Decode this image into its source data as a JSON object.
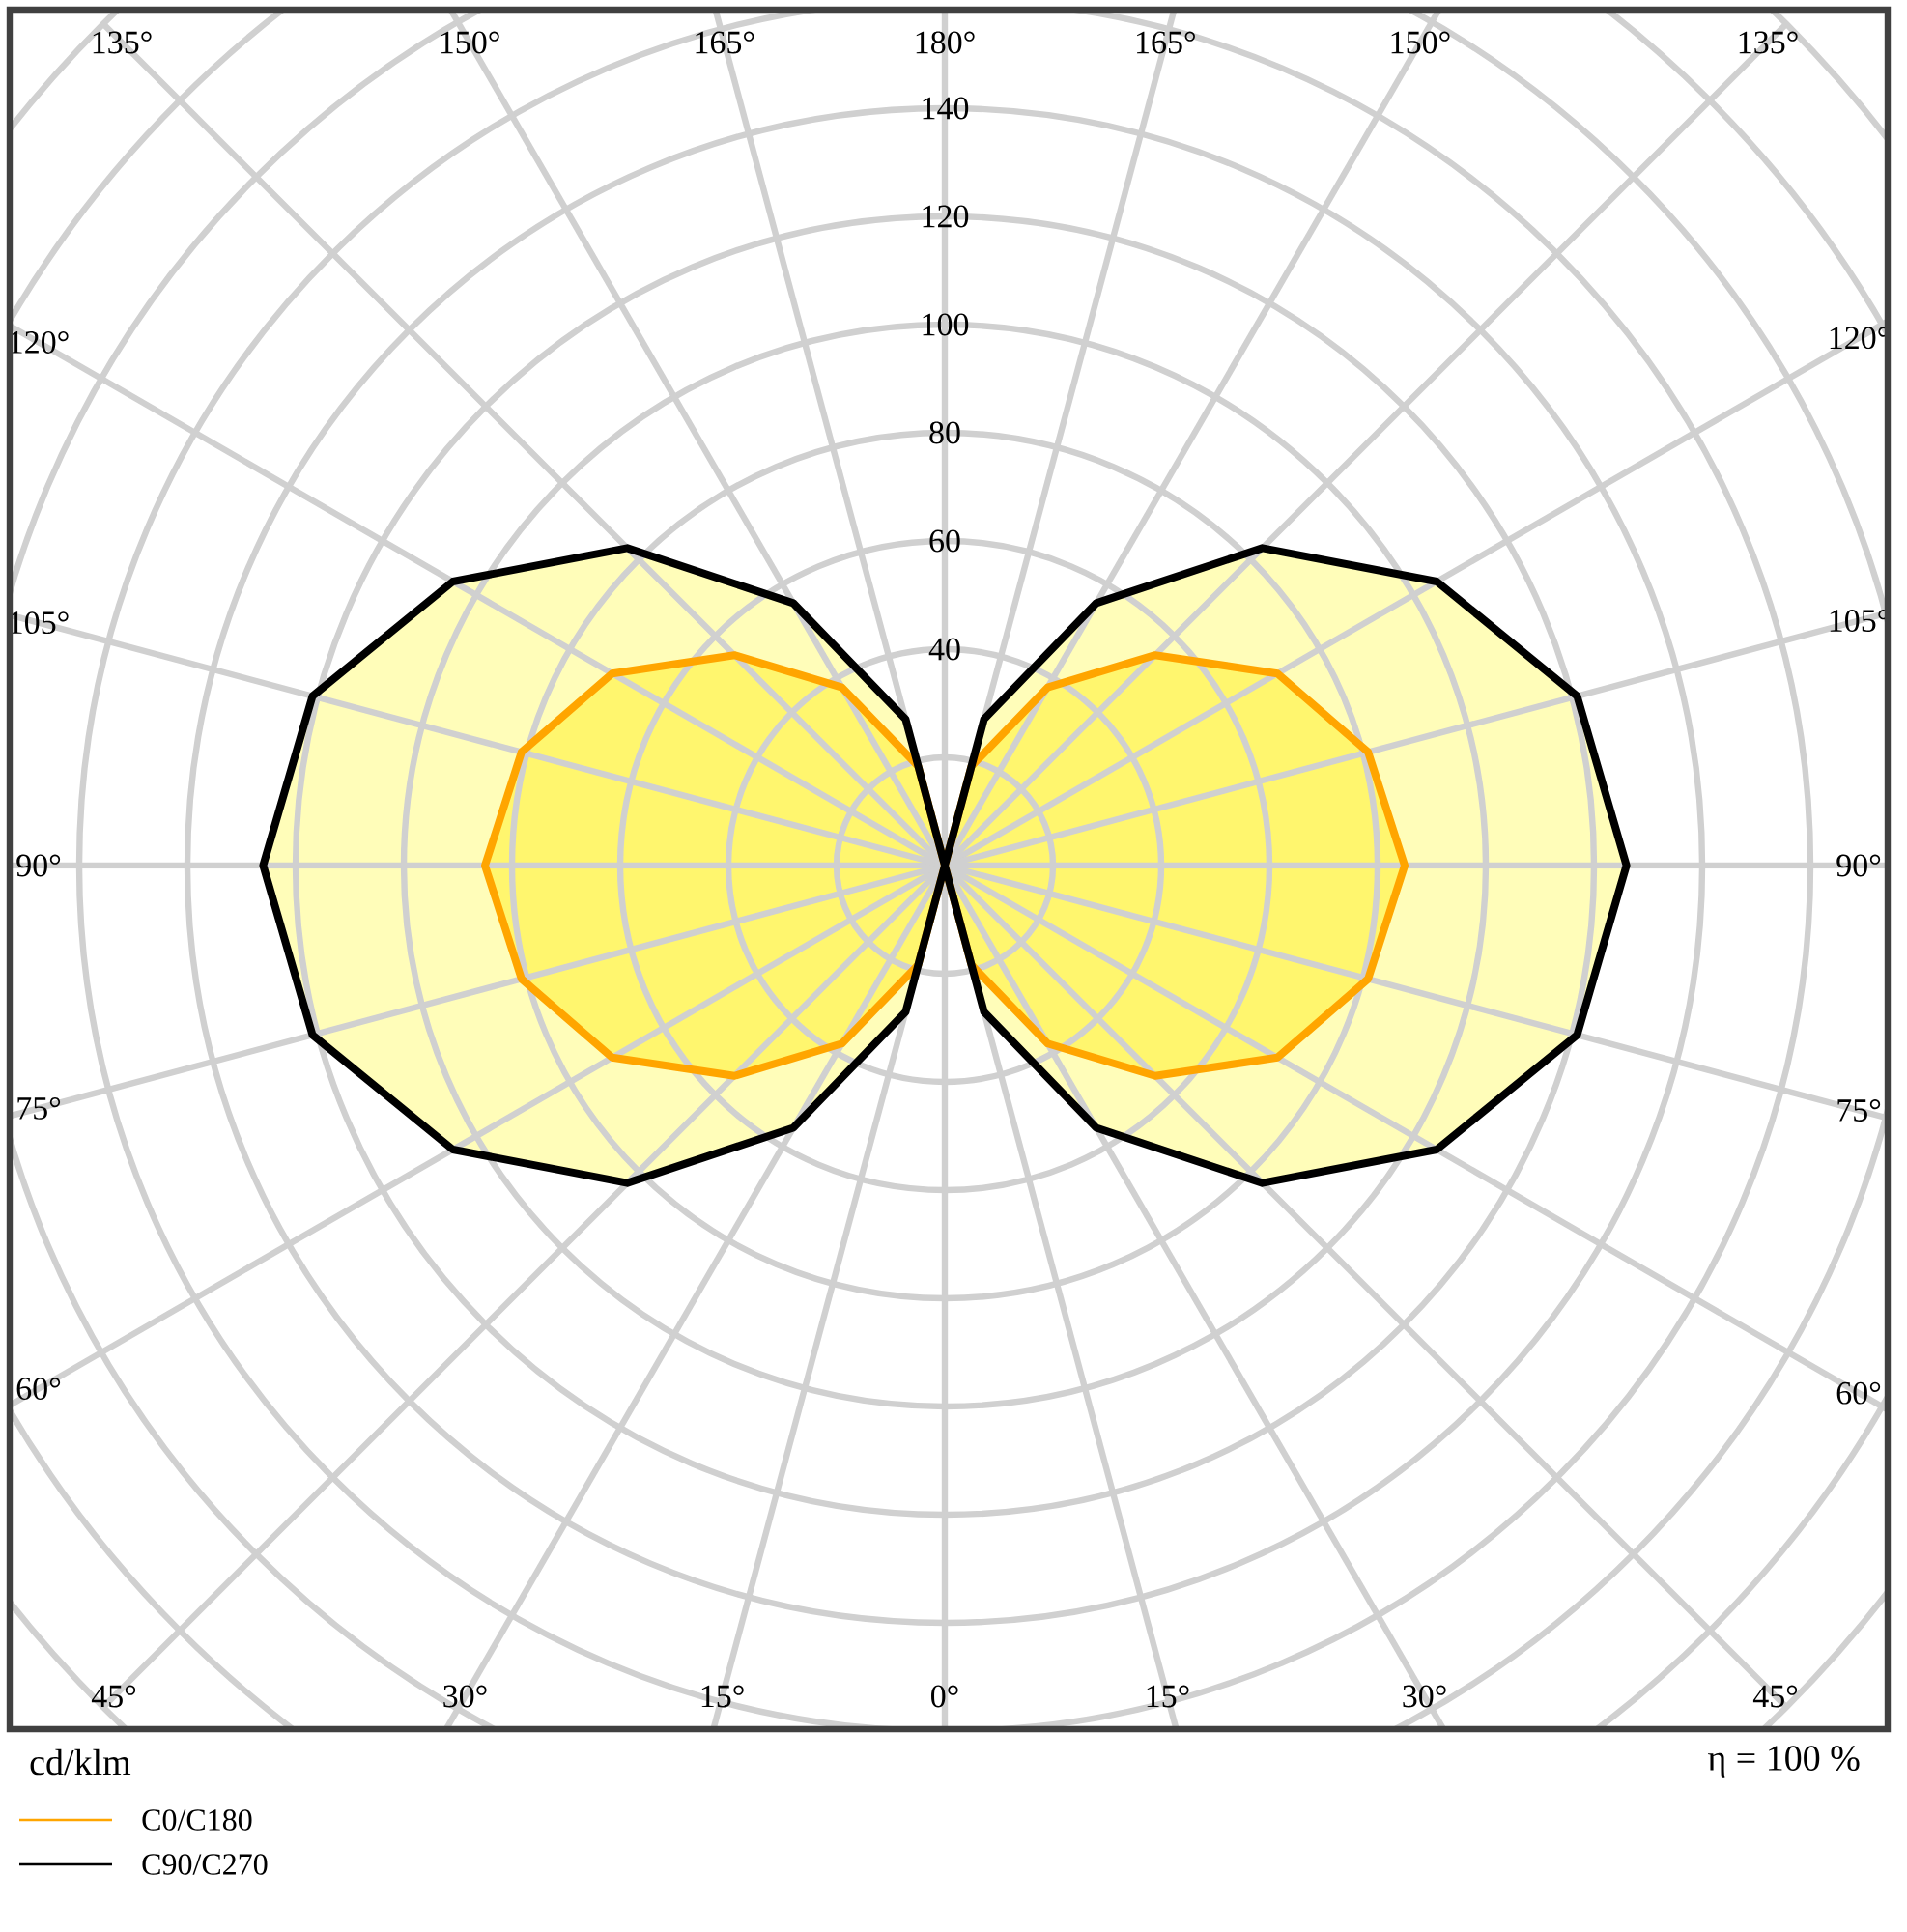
{
  "chart_data": {
    "type": "radar",
    "ylabel": "cd/klm",
    "annotations": [
      "η = 100 %"
    ],
    "categories": [
      "180°",
      "165°",
      "150°",
      "135°",
      "120°",
      "105°",
      "90°",
      "75°",
      "60°",
      "45°",
      "30°",
      "15°",
      "0°",
      "15°",
      "30°",
      "45°",
      "60°",
      "75°",
      "90°",
      "105°",
      "120°",
      "135°",
      "150°",
      "165°"
    ],
    "series": [
      {
        "name": "C0/C180",
        "color": "#ffa500",
        "values": [
          0,
          19,
          38,
          55,
          71,
          81,
          85,
          81,
          71,
          55,
          38,
          19,
          0,
          19,
          38,
          55,
          71,
          81,
          85,
          81,
          71,
          55,
          38,
          19
        ]
      },
      {
        "name": "C90/C270",
        "color": "#000000",
        "values": [
          0,
          28,
          56,
          83,
          105,
          121,
          126,
          121,
          105,
          83,
          56,
          28,
          0,
          28,
          56,
          83,
          105,
          121,
          126,
          121,
          105,
          83,
          56,
          28
        ]
      }
    ],
    "ylim": [
      0,
      220
    ],
    "yticks": [
      40,
      60,
      80,
      100,
      120,
      140
    ],
    "grid": true,
    "legend": "bottom left"
  }
}
